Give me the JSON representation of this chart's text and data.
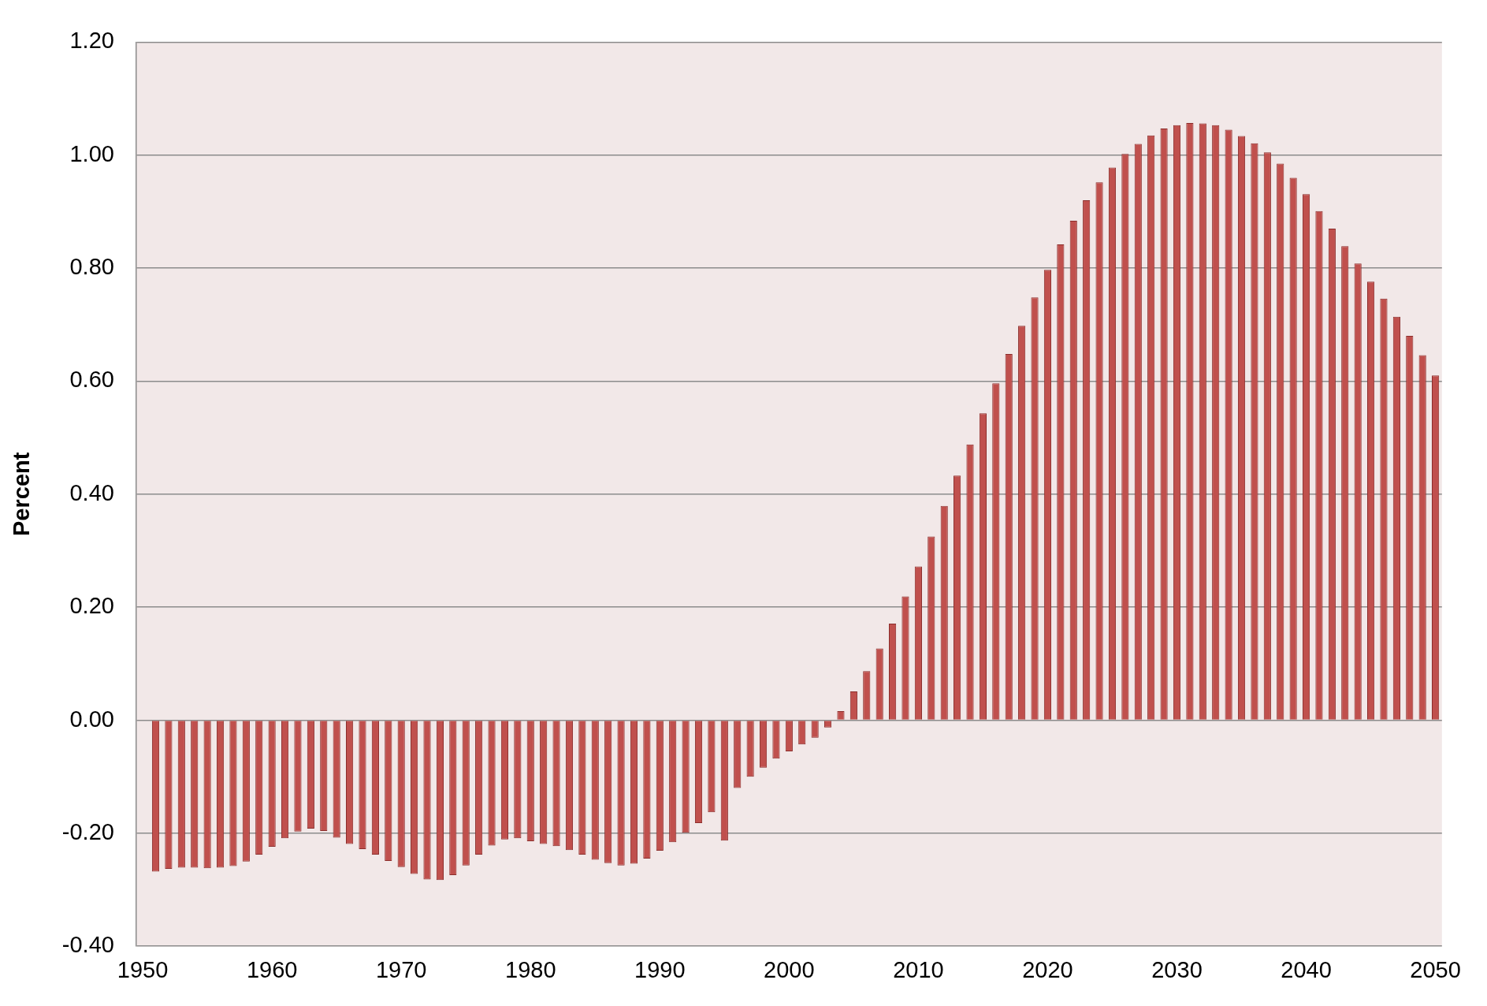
{
  "chart_data": {
    "type": "bar",
    "ylabel": "Percent",
    "categories": [
      "1950",
      null,
      null,
      null,
      null,
      null,
      null,
      null,
      null,
      null,
      "1960",
      null,
      null,
      null,
      null,
      null,
      null,
      null,
      null,
      null,
      "1970",
      null,
      null,
      null,
      null,
      null,
      null,
      null,
      null,
      null,
      "1980",
      null,
      null,
      null,
      null,
      null,
      null,
      null,
      null,
      null,
      "1990",
      null,
      null,
      null,
      null,
      null,
      null,
      null,
      null,
      null,
      "2000",
      null,
      null,
      null,
      null,
      null,
      null,
      null,
      null,
      null,
      "2010",
      null,
      null,
      null,
      null,
      null,
      null,
      null,
      null,
      null,
      "2020",
      null,
      null,
      null,
      null,
      null,
      null,
      null,
      null,
      null,
      "2030",
      null,
      null,
      null,
      null,
      null,
      null,
      null,
      null,
      null,
      "2040",
      null,
      null,
      null,
      null,
      null,
      null,
      null,
      null,
      null,
      "2050"
    ],
    "values": [
      null,
      -0.268,
      -0.263,
      -0.261,
      -0.261,
      -0.262,
      -0.261,
      -0.258,
      -0.25,
      -0.238,
      -0.224,
      -0.209,
      -0.197,
      -0.192,
      -0.196,
      -0.208,
      -0.219,
      -0.228,
      -0.238,
      -0.249,
      -0.26,
      -0.272,
      -0.282,
      -0.283,
      -0.274,
      -0.257,
      -0.238,
      -0.222,
      -0.211,
      -0.209,
      -0.214,
      -0.219,
      -0.223,
      -0.23,
      -0.238,
      -0.247,
      -0.253,
      -0.257,
      -0.254,
      -0.245,
      -0.231,
      -0.216,
      -0.199,
      -0.182,
      -0.163,
      -0.213,
      -0.12,
      -0.1,
      -0.084,
      -0.068,
      -0.055,
      -0.043,
      -0.031,
      -0.013,
      0.016,
      0.051,
      0.087,
      0.127,
      0.171,
      0.219,
      0.272,
      0.325,
      0.379,
      0.433,
      0.488,
      0.543,
      0.596,
      0.648,
      0.698,
      0.748,
      0.797,
      0.842,
      0.884,
      0.92,
      0.952,
      0.978,
      1.002,
      1.02,
      1.035,
      1.047,
      1.053,
      1.057,
      1.056,
      1.053,
      1.045,
      1.034,
      1.021,
      1.005,
      0.985,
      0.96,
      0.931,
      0.901,
      0.87,
      0.839,
      0.808,
      0.776,
      0.746,
      0.714,
      0.68,
      0.646,
      0.61
    ],
    "color": "#c0504d",
    "ylim": [
      -0.4,
      1.2
    ],
    "yticks": [
      {
        "value": -0.4,
        "label": "-0.40"
      },
      {
        "value": -0.2,
        "label": "-0.20"
      },
      {
        "value": 0,
        "label": "0.00"
      },
      {
        "value": 0.2,
        "label": "0.20"
      },
      {
        "value": 0.4,
        "label": "0.40"
      },
      {
        "value": 0.6,
        "label": "0.60"
      },
      {
        "value": 0.8,
        "label": "0.80"
      },
      {
        "value": 1,
        "label": "1.00"
      },
      {
        "value": 1.2,
        "label": "1.20"
      }
    ],
    "grid": "y"
  }
}
